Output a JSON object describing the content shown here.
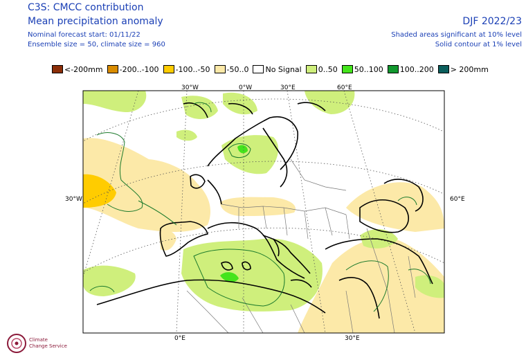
{
  "header": {
    "title_line1": "C3S: CMCC contribution",
    "title_line2": "Mean precipitation anomaly",
    "forecast_start": "Nominal forecast start: 01/11/22",
    "ensemble": "Ensemble size = 50, climate size = 960",
    "season": "DJF 2022/23",
    "shaded_note": "Shaded areas significant at 10% level",
    "contour_note": "Solid contour at 1% level"
  },
  "legend": [
    {
      "label": "<-200mm",
      "color": "#8b2e08"
    },
    {
      "label": "-200..-100",
      "color": "#d98c00"
    },
    {
      "label": "-100..-50",
      "color": "#ffcc00"
    },
    {
      "label": "-50..0",
      "color": "#fce9a8"
    },
    {
      "label": "No Signal",
      "color": "#ffffff"
    },
    {
      "label": "0..50",
      "color": "#cfef7c"
    },
    {
      "label": "50..100",
      "color": "#44e41c"
    },
    {
      "label": "100..200",
      "color": "#12982e"
    },
    {
      "label": "> 200mm",
      "color": "#0b5e5c"
    }
  ],
  "map": {
    "lon_labels_top": [
      "30°W",
      "0°W",
      "30°E",
      "60°E"
    ],
    "lon_labels_bottom": [
      "0°E",
      "30°E"
    ],
    "lat_label_left": "30°W",
    "lat_label_right": "60°E"
  },
  "logo": {
    "line1": "Climate",
    "line2": "Change Service"
  }
}
